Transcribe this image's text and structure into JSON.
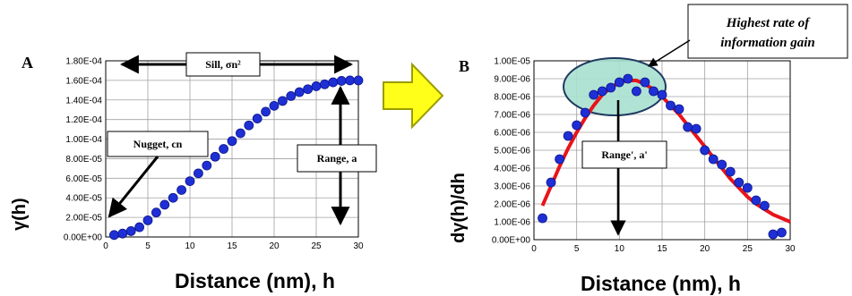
{
  "colors": {
    "point": "#1f2fd6",
    "point_edge": "#0b168a",
    "fit": "#e8141b",
    "ellipse_fill": "#a8e0d0",
    "ellipse_stroke": "#1e3a5f",
    "arrow_fill": "#ffff1a",
    "arrow_stroke": "#9c9c00",
    "grid": "#a0a0a0"
  },
  "panels": {
    "A": {
      "letter": "A",
      "xlabel": "Distance (nm), h",
      "ylabel": "γ(h)",
      "sill": "Sill, σn²",
      "nugget": "Nugget, cn",
      "range": "Range, a"
    },
    "B": {
      "letter": "B",
      "xlabel": "Distance (nm), h",
      "ylabel": "dγ(h)/dh",
      "range": "Range', a'",
      "callout_line1": "Highest rate of",
      "callout_line2": "information gain"
    }
  },
  "chart_data": [
    {
      "type": "scatter",
      "xlabel": "Distance (nm), h",
      "ylabel": "γ(h)",
      "xlim": [
        0,
        30
      ],
      "ylim": [
        0,
        0.00018
      ],
      "xticks": [
        "0",
        "5",
        "10",
        "15",
        "20",
        "25",
        "30"
      ],
      "yticks": [
        "0.00E+00",
        "2.00E-05",
        "4.00E-05",
        "6.00E-05",
        "8.00E-05",
        "1.00E-04",
        "1.20E-04",
        "1.40E-04",
        "1.60E-04",
        "1.80E-04"
      ],
      "grid": true,
      "series": [
        {
          "x": [
            1,
            2,
            3,
            4,
            5,
            6,
            7,
            8,
            9,
            10,
            11,
            12,
            13,
            14,
            15,
            16,
            17,
            18,
            19,
            20,
            21,
            22,
            23,
            24,
            25,
            26,
            27,
            28,
            29,
            30
          ],
          "y": [
            2e-06,
            3.5e-06,
            6e-06,
            1e-05,
            1.7e-05,
            2.5e-05,
            3.3e-05,
            4e-05,
            4.8e-05,
            5.7e-05,
            6.5e-05,
            7.3e-05,
            8.2e-05,
            9e-05,
            9.8e-05,
            0.000106,
            0.000114,
            0.000121,
            0.000128,
            0.000134,
            0.000139,
            0.000144,
            0.000148,
            0.000151,
            0.000154,
            0.000156,
            0.000158,
            0.0001595,
            0.00016,
            0.00016
          ]
        }
      ]
    },
    {
      "type": "scatter",
      "xlabel": "Distance (nm), h",
      "ylabel": "dγ(h)/dh",
      "xlim": [
        0,
        30
      ],
      "ylim": [
        0,
        1e-05
      ],
      "xticks": [
        "0",
        "5",
        "10",
        "15",
        "20",
        "25",
        "30"
      ],
      "yticks": [
        "0.00E+00",
        "1.00E-06",
        "2.00E-06",
        "3.00E-06",
        "4.00E-06",
        "5.00E-06",
        "6.00E-06",
        "7.00E-06",
        "8.00E-06",
        "9.00E-06",
        "1.00E-05"
      ],
      "grid": true,
      "series": [
        {
          "x": [
            1,
            2,
            3,
            4,
            5,
            6,
            7,
            8,
            9,
            10,
            11,
            12,
            13,
            14,
            15,
            16,
            17,
            18,
            19,
            20,
            21,
            22,
            23,
            24,
            25,
            26,
            27,
            28,
            29
          ],
          "y": [
            1.2e-06,
            3.2e-06,
            4.5e-06,
            5.8e-06,
            6.4e-06,
            7.1e-06,
            8.1e-06,
            8.3e-06,
            8.5e-06,
            8.8e-06,
            9e-06,
            8.3e-06,
            8.8e-06,
            8.3e-06,
            8.1e-06,
            7.5e-06,
            7.3e-06,
            6.3e-06,
            6.2e-06,
            5e-06,
            4.5e-06,
            4.2e-06,
            3.8e-06,
            3.2e-06,
            2.9e-06,
            2.2e-06,
            1.9e-06,
            3e-07,
            4e-07
          ]
        },
        {
          "x": [
            1,
            2,
            3,
            4,
            5,
            6,
            7,
            8,
            9,
            10,
            11,
            12,
            13,
            14,
            15,
            16,
            17,
            18,
            19,
            20,
            21,
            22,
            23,
            24,
            25,
            26,
            27,
            28,
            29,
            30
          ],
          "y": [
            1.9e-06,
            3e-06,
            4.1e-06,
            5.1e-06,
            6e-06,
            6.8e-06,
            7.5e-06,
            8.1e-06,
            8.5e-06,
            8.8e-06,
            8.9e-06,
            8.9e-06,
            8.7e-06,
            8.4e-06,
            8e-06,
            7.5e-06,
            7e-06,
            6.4e-06,
            5.8e-06,
            5.2e-06,
            4.6e-06,
            4e-06,
            3.4e-06,
            2.9e-06,
            2.4e-06,
            2e-06,
            1.7e-06,
            1.4e-06,
            1.2e-06,
            1e-06
          ]
        }
      ]
    }
  ]
}
